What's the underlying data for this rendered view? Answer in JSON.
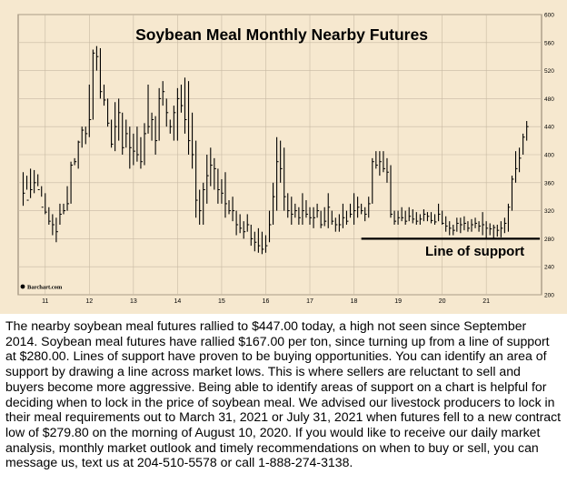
{
  "chart_data": {
    "type": "ohlc",
    "title": "Soybean Meal Monthly Nearby Futures",
    "source": "Barchart.com",
    "annotation": "Line of support",
    "support_level": 280,
    "ylim": [
      200,
      600
    ],
    "y_ticks": [
      200,
      240,
      280,
      320,
      360,
      400,
      440,
      480,
      520,
      560,
      600
    ],
    "x_ticks": [
      "11",
      "12",
      "13",
      "14",
      "15",
      "16",
      "17",
      "18",
      "19",
      "20",
      "21"
    ],
    "start": "2010-07",
    "bars": [
      [
        327,
        375,
        345
      ],
      [
        350,
        370,
        335
      ],
      [
        338,
        380,
        350
      ],
      [
        345,
        378,
        360
      ],
      [
        355,
        372,
        350
      ],
      [
        340,
        355,
        325
      ],
      [
        315,
        345,
        318
      ],
      [
        300,
        325,
        305
      ],
      [
        285,
        315,
        300
      ],
      [
        275,
        310,
        290
      ],
      [
        300,
        330,
        315
      ],
      [
        315,
        330,
        320
      ],
      [
        320,
        355,
        330
      ],
      [
        330,
        390,
        385
      ],
      [
        385,
        395,
        390
      ],
      [
        380,
        420,
        418
      ],
      [
        410,
        440,
        435
      ],
      [
        415,
        440,
        430
      ],
      [
        425,
        500,
        450
      ],
      [
        450,
        550,
        545
      ],
      [
        520,
        555,
        540
      ],
      [
        480,
        552,
        490
      ],
      [
        470,
        500,
        478
      ],
      [
        440,
        480,
        445
      ],
      [
        410,
        450,
        415
      ],
      [
        405,
        475,
        440
      ],
      [
        420,
        480,
        460
      ],
      [
        400,
        460,
        410
      ],
      [
        410,
        450,
        430
      ],
      [
        380,
        440,
        410
      ],
      [
        385,
        430,
        405
      ],
      [
        390,
        440,
        400
      ],
      [
        380,
        425,
        390
      ],
      [
        385,
        445,
        430
      ],
      [
        430,
        500,
        440
      ],
      [
        420,
        460,
        450
      ],
      [
        400,
        455,
        420
      ],
      [
        420,
        495,
        480
      ],
      [
        470,
        505,
        490
      ],
      [
        440,
        480,
        460
      ],
      [
        430,
        450,
        440
      ],
      [
        420,
        470,
        460
      ],
      [
        420,
        495,
        480
      ],
      [
        460,
        500,
        470
      ],
      [
        430,
        510,
        450
      ],
      [
        400,
        505,
        420
      ],
      [
        380,
        460,
        400
      ],
      [
        310,
        420,
        335
      ],
      [
        300,
        350,
        320
      ],
      [
        300,
        360,
        350
      ],
      [
        330,
        400,
        370
      ],
      [
        355,
        410,
        385
      ],
      [
        350,
        395,
        380
      ],
      [
        330,
        380,
        350
      ],
      [
        330,
        365,
        345
      ],
      [
        310,
        375,
        330
      ],
      [
        315,
        335,
        320
      ],
      [
        305,
        340,
        320
      ],
      [
        285,
        320,
        300
      ],
      [
        288,
        315,
        295
      ],
      [
        280,
        305,
        290
      ],
      [
        290,
        315,
        300
      ],
      [
        270,
        300,
        280
      ],
      [
        262,
        290,
        275
      ],
      [
        260,
        295,
        270
      ],
      [
        258,
        290,
        265
      ],
      [
        260,
        285,
        270
      ],
      [
        275,
        320,
        300
      ],
      [
        300,
        360,
        340
      ],
      [
        320,
        425,
        390
      ],
      [
        360,
        420,
        380
      ],
      [
        320,
        410,
        340
      ],
      [
        310,
        345,
        320
      ],
      [
        300,
        340,
        315
      ],
      [
        310,
        330,
        320
      ],
      [
        300,
        325,
        310
      ],
      [
        300,
        345,
        320
      ],
      [
        310,
        335,
        315
      ],
      [
        300,
        325,
        310
      ],
      [
        295,
        325,
        310
      ],
      [
        310,
        330,
        320
      ],
      [
        295,
        320,
        300
      ],
      [
        298,
        325,
        305
      ],
      [
        295,
        345,
        325
      ],
      [
        300,
        320,
        305
      ],
      [
        290,
        310,
        300
      ],
      [
        290,
        315,
        300
      ],
      [
        295,
        330,
        310
      ],
      [
        300,
        320,
        305
      ],
      [
        310,
        330,
        315
      ],
      [
        300,
        345,
        320
      ],
      [
        310,
        340,
        325
      ],
      [
        315,
        330,
        320
      ],
      [
        305,
        325,
        315
      ],
      [
        310,
        340,
        330
      ],
      [
        330,
        395,
        390
      ],
      [
        380,
        405,
        385
      ],
      [
        370,
        405,
        390
      ],
      [
        375,
        405,
        380
      ],
      [
        360,
        395,
        375
      ],
      [
        310,
        385,
        315
      ],
      [
        300,
        320,
        305
      ],
      [
        300,
        320,
        310
      ],
      [
        305,
        325,
        310
      ],
      [
        300,
        320,
        305
      ],
      [
        305,
        325,
        312
      ],
      [
        302,
        322,
        308
      ],
      [
        300,
        318,
        305
      ],
      [
        300,
        315,
        308
      ],
      [
        305,
        322,
        315
      ],
      [
        305,
        318,
        312
      ],
      [
        302,
        318,
        306
      ],
      [
        300,
        315,
        304
      ],
      [
        305,
        330,
        315
      ],
      [
        300,
        320,
        302
      ],
      [
        290,
        312,
        298
      ],
      [
        285,
        305,
        295
      ],
      [
        285,
        300,
        292
      ],
      [
        290,
        310,
        302
      ],
      [
        288,
        310,
        300
      ],
      [
        292,
        312,
        302
      ],
      [
        290,
        305,
        295
      ],
      [
        290,
        308,
        300
      ],
      [
        295,
        310,
        302
      ],
      [
        290,
        305,
        298
      ],
      [
        285,
        318,
        300
      ],
      [
        280,
        305,
        295
      ],
      [
        285,
        302,
        294
      ],
      [
        280,
        300,
        296
      ],
      [
        283,
        300,
        292
      ],
      [
        282,
        305,
        295
      ],
      [
        288,
        310,
        302
      ],
      [
        290,
        330,
        325
      ],
      [
        320,
        370,
        365
      ],
      [
        360,
        405,
        380
      ],
      [
        375,
        410,
        395
      ],
      [
        400,
        430,
        425
      ],
      [
        420,
        448,
        440
      ]
    ]
  },
  "article": {
    "text": "The nearby soybean meal futures rallied to $447.00 today, a high not seen since September 2014. Soybean meal futures have rallied $167.00 per ton, since turning up from a line of support at $280.00. Lines of support have proven to be buying opportunities. You can identify an area of support by drawing a line across market lows. This is where sellers are reluctant to sell and buyers become more aggressive. Being able to identify areas of support on a chart is helpful for deciding when to lock in the price of soybean meal. We advised our livestock producers to lock in their meal requirements out to March 31, 2021 or July 31, 2021 when futures fell to a new contract low of $279.80 on the morning of August 10, 2020. If you would like to receive our daily market analysis, monthly market outlook and timely recommendations on when to buy or sell, you can message us, text us at 204-510-5578 or call 1-888-274-3138."
  },
  "colors": {
    "background": "#f6e8cf",
    "grid": "#c7b9a3",
    "bars": "#000000",
    "support_line": "#000000"
  }
}
